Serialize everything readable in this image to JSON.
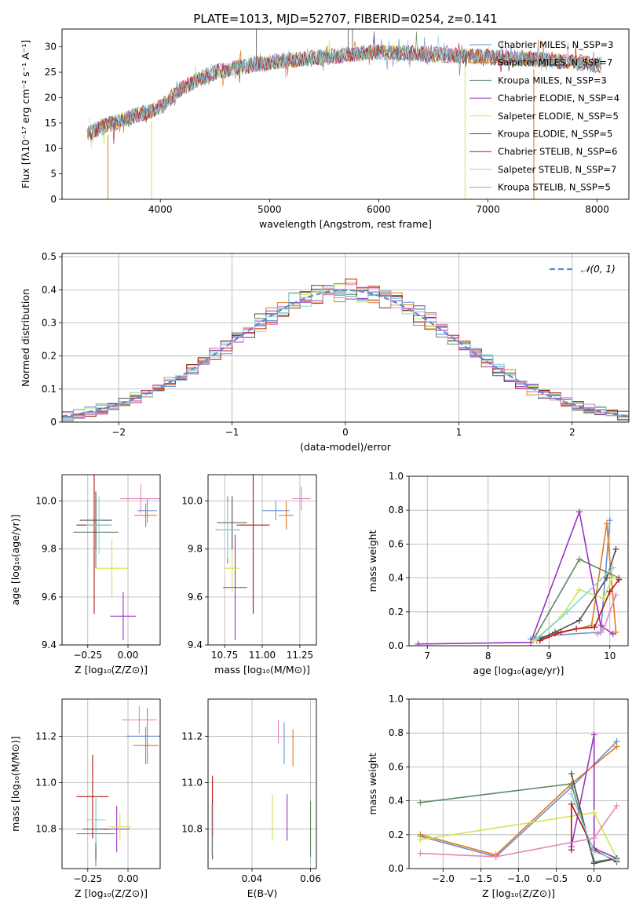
{
  "figure_title": "PLATE=1013, MJD=52707, FIBERID=0254, z=0.141",
  "colors": [
    "#6a90d8",
    "#e07b1c",
    "#5e8862",
    "#9b34c0",
    "#cfe550",
    "#4f4f4f",
    "#b01818",
    "#7fd6de",
    "#e685bb"
  ],
  "chart_data": [
    {
      "type": "line",
      "name": "spectrum",
      "xlabel": "wavelength [Angstrom, rest frame]",
      "ylabel": "Flux [fλ10⁻¹⁷ erg cm⁻² s⁻¹ A⁻¹]",
      "xlim": [
        3100,
        8290
      ],
      "ylim": [
        0,
        33.5
      ],
      "x_ticks": [
        4000,
        5000,
        6000,
        7000,
        8000
      ],
      "y_ticks": [
        0,
        5,
        10,
        15,
        20,
        25,
        30
      ],
      "grid": false,
      "legend_position": "top-right",
      "continuum_x": [
        3350,
        3500,
        3700,
        3850,
        4000,
        4200,
        4500,
        5000,
        5500,
        6000,
        6500,
        7000,
        7500,
        8000
      ],
      "continuum_y": [
        13,
        14.5,
        16,
        17,
        18,
        22,
        25,
        27,
        28,
        29,
        28.5,
        28,
        27.5,
        26.5
      ],
      "series": [
        {
          "name": "Chabrier MILES, N_SSP=3"
        },
        {
          "name": "Salpeter MILES, N_SSP=7"
        },
        {
          "name": "Kroupa MILES, N_SSP=3"
        },
        {
          "name": "Chabrier ELODIE, N_SSP=4"
        },
        {
          "name": "Salpeter ELODIE, N_SSP=5"
        },
        {
          "name": "Kroupa ELODIE, N_SSP=5"
        },
        {
          "name": "Chabrier STELIB, N_SSP=6"
        },
        {
          "name": "Salpeter STELIB, N_SSP=7"
        },
        {
          "name": "Kroupa STELIB, N_SSP=5"
        }
      ]
    },
    {
      "type": "line",
      "name": "residual-histogram",
      "xlabel": "(data-model)/error",
      "ylabel": "Normed distribution",
      "xlim": [
        -2.5,
        2.5
      ],
      "ylim": [
        0,
        0.51
      ],
      "x_ticks": [
        -2,
        -1,
        0,
        1,
        2
      ],
      "y_ticks": [
        0.0,
        0.1,
        0.2,
        0.3,
        0.4,
        0.5
      ],
      "grid": true,
      "legend_position": "top-right",
      "reference_curve": {
        "name": "𝒩(0, 1)",
        "mean": 0,
        "sigma": 1
      },
      "bin_width": 0.1
    },
    {
      "type": "scatter",
      "name": "age-vs-Z",
      "xlabel": "Z [log₁₀(Z/Z⊙)]",
      "ylabel": "age  [log₁₀(age/yr)]",
      "xlim": [
        -0.41,
        0.2
      ],
      "ylim": [
        9.4,
        10.11
      ],
      "x_ticks": [
        -0.25,
        0.0
      ],
      "x_tick_labels": [
        "−0.25",
        "0.00"
      ],
      "y_ticks": [
        9.4,
        9.6,
        9.8,
        10.0
      ],
      "grid": true,
      "points": [
        {
          "x": 0.12,
          "xerr": 0.06,
          "y": 9.96,
          "yerr": 0.05
        },
        {
          "x": 0.11,
          "xerr": 0.07,
          "y": 9.94,
          "yerr": 0.05
        },
        {
          "x": -0.2,
          "xerr": 0.14,
          "y": 9.87,
          "yerr": 0.15
        },
        {
          "x": -0.03,
          "xerr": 0.08,
          "y": 9.52,
          "yerr": 0.1
        },
        {
          "x": -0.1,
          "xerr": 0.1,
          "y": 9.72,
          "yerr": 0.12
        },
        {
          "x": -0.2,
          "xerr": 0.1,
          "y": 9.92,
          "yerr": 0.12
        },
        {
          "x": -0.21,
          "xerr": 0.11,
          "y": 9.9,
          "yerr": 0.37
        },
        {
          "x": -0.18,
          "xerr": 0.08,
          "y": 9.9,
          "yerr": 0.12
        },
        {
          "x": 0.08,
          "xerr": 0.13,
          "y": 10.01,
          "yerr": 0.06
        }
      ]
    },
    {
      "type": "scatter",
      "name": "age-vs-mass",
      "xlabel": "mass [log₁₀(M/M⊙)]",
      "ylabel": "",
      "xlim": [
        10.64,
        11.36
      ],
      "ylim": [
        9.4,
        10.11
      ],
      "x_ticks": [
        10.75,
        11.0,
        11.25
      ],
      "x_tick_labels": [
        "10.75",
        "11.00",
        "11.25"
      ],
      "y_ticks": [
        9.4,
        9.6,
        9.8,
        10.0
      ],
      "grid": true,
      "points": [
        {
          "x": 11.09,
          "xerr": 0.09,
          "y": 9.96,
          "yerr": 0.04
        },
        {
          "x": 11.16,
          "xerr": 0.05,
          "y": 9.94,
          "yerr": 0.06
        },
        {
          "x": 10.77,
          "xerr": 0.08,
          "y": 9.88,
          "yerr": 0.14
        },
        {
          "x": 10.82,
          "xerr": 0.08,
          "y": 9.64,
          "yerr": 0.22
        },
        {
          "x": 10.8,
          "xerr": 0.05,
          "y": 9.72,
          "yerr": 0.1
        },
        {
          "x": 10.8,
          "xerr": 0.1,
          "y": 9.91,
          "yerr": 0.11
        },
        {
          "x": 10.94,
          "xerr": 0.11,
          "y": 9.9,
          "yerr": 0.37
        },
        {
          "x": 10.77,
          "xerr": 0.07,
          "y": 9.88,
          "yerr": 0.12
        },
        {
          "x": 11.26,
          "xerr": 0.06,
          "y": 10.01,
          "yerr": 0.05
        }
      ]
    },
    {
      "type": "line",
      "name": "mass-weight-vs-age",
      "xlabel": "age  [log₁₀(age/yr)]",
      "ylabel": "mass weight",
      "xlim": [
        6.7,
        10.3
      ],
      "ylim": [
        0,
        1.0
      ],
      "x_ticks": [
        7,
        8,
        9,
        10
      ],
      "y_ticks": [
        0.0,
        0.2,
        0.4,
        0.6,
        0.8,
        1.0
      ],
      "grid": true,
      "series": [
        {
          "x": [
            8.7,
            9.0,
            9.85,
            10.0
          ],
          "y": [
            0.04,
            0.06,
            0.08,
            0.74
          ]
        },
        {
          "x": [
            8.8,
            9.1,
            9.7,
            9.95,
            10.1
          ],
          "y": [
            0.03,
            0.07,
            0.12,
            0.72,
            0.08
          ]
        },
        {
          "x": [
            8.75,
            9.5,
            10.15
          ],
          "y": [
            0.04,
            0.51,
            0.4
          ]
        },
        {
          "x": [
            6.85,
            8.7,
            9.5,
            9.85,
            10.05
          ],
          "y": [
            0.01,
            0.02,
            0.79,
            0.12,
            0.07
          ]
        },
        {
          "x": [
            8.75,
            9.2,
            9.5,
            9.9,
            10.05
          ],
          "y": [
            0.03,
            0.17,
            0.33,
            0.28,
            0.41
          ]
        },
        {
          "x": [
            8.85,
            9.1,
            9.5,
            9.95,
            10.1
          ],
          "y": [
            0.04,
            0.08,
            0.15,
            0.4,
            0.57
          ]
        },
        {
          "x": [
            8.85,
            9.2,
            9.45,
            9.75,
            10.0,
            10.15
          ],
          "y": [
            0.03,
            0.08,
            0.1,
            0.11,
            0.32,
            0.39
          ]
        },
        {
          "x": [
            8.8,
            9.3,
            10.05
          ],
          "y": [
            0.04,
            0.2,
            0.46
          ]
        },
        {
          "x": [
            9.8,
            9.9,
            10.1
          ],
          "y": [
            0.07,
            0.1,
            0.3
          ]
        }
      ]
    },
    {
      "type": "scatter",
      "name": "mass-vs-Z",
      "xlabel": "Z [log₁₀(Z/Z⊙)]",
      "ylabel": "mass [log₁₀(M/M⊙)]",
      "xlim": [
        -0.41,
        0.2
      ],
      "ylim": [
        10.63,
        11.36
      ],
      "x_ticks": [
        -0.25,
        0.0
      ],
      "x_tick_labels": [
        "−0.25",
        "0.00"
      ],
      "y_ticks": [
        10.8,
        11.0,
        11.2
      ],
      "grid": true,
      "points": [
        {
          "x": 0.12,
          "xerr": 0.13,
          "y": 11.2,
          "yerr": 0.12
        },
        {
          "x": 0.11,
          "xerr": 0.08,
          "y": 11.16,
          "yerr": 0.08
        },
        {
          "x": -0.2,
          "xerr": 0.12,
          "y": 10.78,
          "yerr": 0.14
        },
        {
          "x": -0.07,
          "xerr": 0.08,
          "y": 10.8,
          "yerr": 0.1
        },
        {
          "x": -0.05,
          "xerr": 0.07,
          "y": 10.81,
          "yerr": 0.06
        },
        {
          "x": -0.2,
          "xerr": 0.08,
          "y": 10.8,
          "yerr": 0.13
        },
        {
          "x": -0.22,
          "xerr": 0.1,
          "y": 10.94,
          "yerr": 0.18
        },
        {
          "x": -0.2,
          "xerr": 0.06,
          "y": 10.84,
          "yerr": 0.1
        },
        {
          "x": 0.07,
          "xerr": 0.11,
          "y": 11.27,
          "yerr": 0.06
        }
      ]
    },
    {
      "type": "scatter",
      "name": "mass-vs-EBV",
      "xlabel": "E(B-V)",
      "ylabel": "",
      "xlim": [
        0.025,
        0.062
      ],
      "ylim": [
        10.63,
        11.36
      ],
      "x_ticks": [
        0.04,
        0.06
      ],
      "x_tick_labels": [
        "0.04",
        "0.06"
      ],
      "y_ticks": [
        10.8,
        11.0,
        11.2
      ],
      "grid": true,
      "points": [
        {
          "x": 0.051,
          "y": 11.17,
          "yerr": 0.09
        },
        {
          "x": 0.054,
          "y": 11.15,
          "yerr": 0.08
        },
        {
          "x": 0.06,
          "y": 10.8,
          "yerr": 0.12
        },
        {
          "x": 0.052,
          "y": 10.85,
          "yerr": 0.1
        },
        {
          "x": 0.047,
          "y": 10.85,
          "yerr": 0.1
        },
        {
          "x": 0.0265,
          "y": 10.8,
          "yerr": 0.13
        },
        {
          "x": 0.0265,
          "y": 10.9,
          "yerr": 0.13
        },
        {
          "x": 0.0263,
          "y": 10.8,
          "yerr": 0.11
        },
        {
          "x": 0.049,
          "y": 11.22,
          "yerr": 0.05
        }
      ]
    },
    {
      "type": "line",
      "name": "mass-weight-vs-Z",
      "xlabel": "Z [log₁₀(Z/Z⊙)]",
      "ylabel": "mass weight",
      "xlim": [
        -2.45,
        0.45
      ],
      "ylim": [
        0,
        1.0
      ],
      "x_ticks": [
        -2.0,
        -1.5,
        -1.0,
        -0.5,
        0.0
      ],
      "x_tick_labels": [
        "−2.0",
        "−1.5",
        "−1.0",
        "−0.5",
        "0.0"
      ],
      "y_ticks": [
        0.0,
        0.2,
        0.4,
        0.6,
        0.8,
        1.0
      ],
      "grid": true,
      "series": [
        {
          "x": [
            -2.3,
            -1.3,
            -0.3,
            0.3
          ],
          "y": [
            0.19,
            0.07,
            0.48,
            0.75
          ]
        },
        {
          "x": [
            -2.3,
            -1.3,
            -0.3,
            0.3
          ],
          "y": [
            0.2,
            0.08,
            0.5,
            0.72
          ]
        },
        {
          "x": [
            -2.3,
            -0.3,
            0.0,
            0.3
          ],
          "y": [
            0.39,
            0.5,
            0.04,
            0.06
          ]
        },
        {
          "x": [
            -0.3,
            0.0,
            0.0,
            0.3
          ],
          "y": [
            0.13,
            0.79,
            0.12,
            0.06
          ]
        },
        {
          "x": [
            -2.3,
            0.0,
            0.3
          ],
          "y": [
            0.17,
            0.33,
            0.06
          ]
        },
        {
          "x": [
            -0.3,
            0.0,
            0.3
          ],
          "y": [
            0.56,
            0.03,
            0.06
          ]
        },
        {
          "x": [
            -0.3,
            -0.3,
            0.0,
            0.3
          ],
          "y": [
            0.11,
            0.38,
            0.11,
            0.04
          ]
        },
        {
          "x": [
            -0.3,
            0.0,
            0.3
          ],
          "y": [
            0.44,
            0.1,
            0.05
          ]
        },
        {
          "x": [
            -2.3,
            -1.3,
            0.0,
            0.3
          ],
          "y": [
            0.09,
            0.07,
            0.18,
            0.37
          ]
        }
      ]
    }
  ]
}
